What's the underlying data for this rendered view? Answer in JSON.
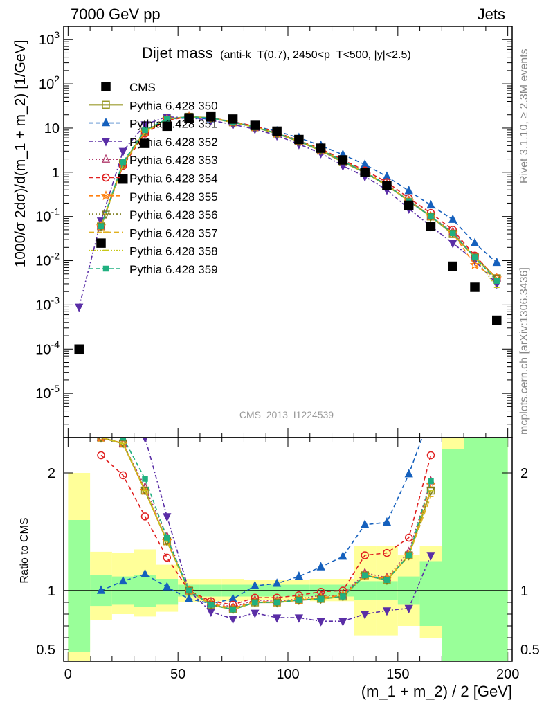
{
  "header": {
    "left": "7000 GeV pp",
    "right": "Jets"
  },
  "side": {
    "rivet": "Rivet 3.1.10, ≥ 2.3M events",
    "mcplots": "mcplots.cern.ch [arXiv:1306.3436]"
  },
  "title": {
    "main": "Dijet mass",
    "sub": "(anti-k_T(0.7), 2450<p_T<500, |y|<2.5)"
  },
  "watermark": "CMS_2013_I1224539",
  "main_ylabel": "1000/σ 2dσ)/d(m_1 + m_2) [1/GeV]",
  "ratio_ylabel": "Ratio to CMS",
  "xlabel": "(m_1 + m_2) / 2 [GeV]",
  "chart_data": {
    "type": "scatter",
    "x_range": [
      -2,
      202
    ],
    "y_range_log": [
      1e-06,
      2000
    ],
    "ratio_range": [
      0.4,
      2.3
    ],
    "x_ticks": [
      0,
      50,
      100,
      150,
      200
    ],
    "y_ticks": [
      {
        "v": 1e-05,
        "label": "10^-5"
      },
      {
        "v": 0.0001,
        "label": "10^-4"
      },
      {
        "v": 0.001,
        "label": "10^-3"
      },
      {
        "v": 0.01,
        "label": "10^-2"
      },
      {
        "v": 0.1,
        "label": "10^-1"
      },
      {
        "v": 1,
        "label": "1"
      },
      {
        "v": 10,
        "label": "10"
      },
      {
        "v": 100,
        "label": "10^2"
      },
      {
        "v": 1000,
        "label": "10^3"
      }
    ],
    "ratio_ticks": [
      {
        "v": 0.5,
        "label": "0.5"
      },
      {
        "v": 1,
        "label": "1"
      },
      {
        "v": 2,
        "label": "2"
      }
    ],
    "x": [
      5,
      15,
      25,
      35,
      45,
      55,
      65,
      75,
      85,
      95,
      105,
      115,
      125,
      135,
      145,
      155,
      165,
      175,
      185,
      195
    ],
    "data": {
      "name": "CMS",
      "values": [
        0.0001,
        0.025,
        0.7,
        4.5,
        11,
        17,
        18,
        16,
        11.5,
        8.5,
        5.5,
        3.5,
        1.9,
        1.0,
        0.5,
        0.18,
        0.06,
        0.0075,
        0.0025,
        0.00045
      ]
    },
    "ratio_bands": [
      {
        "x0": 0,
        "x1": 10,
        "inner": [
          0.48,
          1.6
        ],
        "outer": [
          0.38,
          2.0
        ]
      },
      {
        "x0": 10,
        "x1": 20,
        "inner": [
          0.87,
          1.13
        ],
        "outer": [
          0.75,
          1.33
        ]
      },
      {
        "x0": 20,
        "x1": 30,
        "inner": [
          0.88,
          1.12
        ],
        "outer": [
          0.8,
          1.32
        ]
      },
      {
        "x0": 30,
        "x1": 40,
        "inner": [
          0.86,
          1.13
        ],
        "outer": [
          0.78,
          1.35
        ]
      },
      {
        "x0": 40,
        "x1": 50,
        "inner": [
          0.88,
          1.1
        ],
        "outer": [
          0.82,
          1.22
        ]
      },
      {
        "x0": 50,
        "x1": 60,
        "inner": [
          0.95,
          1.05
        ],
        "outer": [
          0.9,
          1.1
        ]
      },
      {
        "x0": 60,
        "x1": 70,
        "inner": [
          0.95,
          1.05
        ],
        "outer": [
          0.91,
          1.1
        ]
      },
      {
        "x0": 70,
        "x1": 80,
        "inner": [
          0.95,
          1.05
        ],
        "outer": [
          0.91,
          1.1
        ]
      },
      {
        "x0": 80,
        "x1": 90,
        "inner": [
          0.95,
          1.05
        ],
        "outer": [
          0.92,
          1.09
        ]
      },
      {
        "x0": 90,
        "x1": 100,
        "inner": [
          0.95,
          1.05
        ],
        "outer": [
          0.92,
          1.09
        ]
      },
      {
        "x0": 100,
        "x1": 110,
        "inner": [
          0.95,
          1.05
        ],
        "outer": [
          0.92,
          1.09
        ]
      },
      {
        "x0": 110,
        "x1": 120,
        "inner": [
          0.95,
          1.05
        ],
        "outer": [
          0.91,
          1.1
        ]
      },
      {
        "x0": 120,
        "x1": 130,
        "inner": [
          0.95,
          1.05
        ],
        "outer": [
          0.91,
          1.1
        ]
      },
      {
        "x0": 130,
        "x1": 140,
        "inner": [
          0.92,
          1.08
        ],
        "outer": [
          0.62,
          1.38
        ]
      },
      {
        "x0": 140,
        "x1": 150,
        "inner": [
          0.92,
          1.08
        ],
        "outer": [
          0.62,
          1.38
        ]
      },
      {
        "x0": 150,
        "x1": 160,
        "inner": [
          0.88,
          1.12
        ],
        "outer": [
          0.7,
          1.3
        ]
      },
      {
        "x0": 160,
        "x1": 170,
        "inner": [
          0.7,
          1.25
        ],
        "outer": [
          0.6,
          1.38
        ]
      },
      {
        "x0": 170,
        "x1": 180,
        "inner": [
          0.35,
          2.2
        ],
        "outer": [
          0.35,
          2.8
        ]
      },
      {
        "x0": 180,
        "x1": 200,
        "inner": [
          0.35,
          2.8
        ],
        "outer": [
          0.35,
          2.8
        ]
      }
    ],
    "series": [
      {
        "name": "Pythia 6.428 350",
        "color": "#9a9a2a",
        "marker": "square-open",
        "dash": "",
        "width": 2.2,
        "values": [
          null,
          0.06,
          1.6,
          8.3,
          16,
          18,
          17,
          13.5,
          10.5,
          7.5,
          5.0,
          3.1,
          1.7,
          1.0,
          0.5,
          0.23,
          0.1,
          0.04,
          0.012,
          0.004
        ],
        "ratio": [
          null,
          2.3,
          2.25,
          1.85,
          1.42,
          1.0,
          0.88,
          0.84,
          0.9,
          0.9,
          0.92,
          0.93,
          0.95,
          1.13,
          1.09,
          1.3,
          1.85,
          null,
          null,
          null
        ]
      },
      {
        "name": "Pythia 6.428 351",
        "color": "#1560bd",
        "marker": "tri-up",
        "dash": "6,4",
        "width": 1.6,
        "values": [
          null,
          0.06,
          1.6,
          8.5,
          16,
          17,
          16,
          14,
          11,
          8.5,
          6.0,
          4.0,
          2.5,
          1.5,
          0.8,
          0.38,
          0.18,
          0.085,
          0.025,
          0.009
        ],
        "ratio": [
          null,
          1.0,
          1.08,
          1.14,
          1.03,
          0.93,
          0.89,
          0.93,
          1.04,
          1.06,
          1.12,
          1.2,
          1.29,
          1.56,
          1.58,
          1.99,
          2.5,
          null,
          null,
          null
        ]
      },
      {
        "name": "Pythia 6.428 352",
        "color": "#5a2ea6",
        "marker": "tri-down",
        "dash": "6,3,2,3",
        "width": 1.6,
        "values": [
          0.0009,
          0.08,
          3.0,
          12,
          18,
          17,
          15,
          12,
          9.5,
          6.8,
          4.3,
          2.7,
          1.4,
          0.8,
          0.4,
          0.15,
          0.06,
          0.025,
          0.01,
          0.003
        ],
        "ratio": [
          null,
          null,
          null,
          2.3,
          1.63,
          1.0,
          0.82,
          0.76,
          0.81,
          0.77,
          0.77,
          0.74,
          0.74,
          0.8,
          0.83,
          0.85,
          1.3,
          null,
          null,
          null
        ]
      },
      {
        "name": "Pythia 6.428 353",
        "color": "#b03a6b",
        "marker": "tri-up-open",
        "dash": "2,3",
        "width": 1.6,
        "values": [
          null,
          0.06,
          1.5,
          8.2,
          16,
          18,
          17,
          13.5,
          10.5,
          7.6,
          5.1,
          3.2,
          1.8,
          1.0,
          0.55,
          0.23,
          0.1,
          0.045,
          0.012,
          0.004
        ],
        "ratio": [
          null,
          2.3,
          2.25,
          1.88,
          1.46,
          1.0,
          0.9,
          0.86,
          0.92,
          0.91,
          0.93,
          0.96,
          0.96,
          1.15,
          1.11,
          1.33,
          1.93,
          null,
          null,
          null
        ]
      },
      {
        "name": "Pythia 6.428 354",
        "color": "#e02020",
        "marker": "circle-open",
        "dash": "6,4",
        "width": 1.6,
        "values": [
          null,
          0.06,
          1.4,
          7.5,
          15,
          18,
          17,
          14,
          11,
          8.0,
          5.2,
          3.4,
          1.9,
          1.1,
          0.6,
          0.26,
          0.12,
          0.05,
          0.013,
          0.004
        ],
        "ratio": [
          null,
          2.15,
          1.98,
          1.63,
          1.28,
          1.0,
          0.91,
          0.88,
          0.94,
          0.94,
          0.96,
          0.99,
          1.0,
          1.3,
          1.32,
          1.45,
          2.15,
          null,
          null,
          null
        ]
      },
      {
        "name": "Pythia 6.428 355",
        "color": "#ff7f0e",
        "marker": "star-open",
        "dash": "6,4",
        "width": 1.6,
        "values": [
          null,
          0.06,
          1.5,
          8.0,
          16,
          18,
          17,
          13.5,
          10.5,
          7.6,
          5.1,
          3.2,
          1.8,
          1.0,
          0.52,
          0.22,
          0.1,
          0.042,
          0.008,
          0.004
        ],
        "ratio": [
          null,
          2.3,
          2.25,
          1.85,
          1.42,
          1.0,
          0.89,
          0.85,
          0.91,
          0.9,
          0.92,
          0.94,
          0.96,
          1.13,
          1.1,
          1.3,
          1.9,
          null,
          null,
          null
        ]
      },
      {
        "name": "Pythia 6.428 356",
        "color": "#7a7a1a",
        "marker": "tri-down-open",
        "dash": "2,3",
        "width": 1.6,
        "values": [
          null,
          0.06,
          1.5,
          8.2,
          16,
          18,
          17,
          13.5,
          10.5,
          7.6,
          5.1,
          3.2,
          1.8,
          1.0,
          0.52,
          0.22,
          0.1,
          0.042,
          0.012,
          0.004
        ],
        "ratio": [
          null,
          2.3,
          2.25,
          1.85,
          1.42,
          1.0,
          0.88,
          0.84,
          0.9,
          0.9,
          0.92,
          0.93,
          0.95,
          1.13,
          1.09,
          1.3,
          1.85,
          null,
          null,
          null
        ]
      },
      {
        "name": "Pythia 6.428 357",
        "color": "#e0b020",
        "marker": "line",
        "dash": "8,4",
        "width": 1.6,
        "values": [
          null,
          0.06,
          1.5,
          8.2,
          16,
          18,
          17,
          13.5,
          10.5,
          7.6,
          5.1,
          3.2,
          1.8,
          1.0,
          0.52,
          0.22,
          0.1,
          0.042,
          0.012,
          0.004
        ],
        "ratio": [
          null,
          2.3,
          2.25,
          1.85,
          1.42,
          1.0,
          0.88,
          0.84,
          0.9,
          0.9,
          0.92,
          0.93,
          0.95,
          1.13,
          1.09,
          1.3,
          1.8,
          null,
          null,
          null
        ]
      },
      {
        "name": "Pythia 6.428 358",
        "color": "#c8c81a",
        "marker": "line",
        "dash": "2,2",
        "width": 1.6,
        "values": [
          null,
          0.06,
          1.5,
          8.2,
          16,
          18,
          17,
          13.5,
          10.5,
          7.6,
          5.1,
          3.2,
          1.8,
          1.0,
          0.52,
          0.22,
          0.1,
          0.042,
          0.012,
          0.0025
        ],
        "ratio": [
          null,
          2.3,
          2.25,
          1.85,
          1.42,
          1.0,
          0.88,
          0.84,
          0.9,
          0.9,
          0.92,
          0.93,
          0.95,
          1.13,
          1.09,
          1.3,
          1.85,
          null,
          null,
          null
        ]
      },
      {
        "name": "Pythia 6.428 359",
        "color": "#20b080",
        "marker": "square-small",
        "dash": "6,4",
        "width": 1.6,
        "values": [
          null,
          0.06,
          1.7,
          9.0,
          16,
          18,
          17,
          13.5,
          10.5,
          7.6,
          5.1,
          3.2,
          1.8,
          1.0,
          0.52,
          0.22,
          0.1,
          0.042,
          0.012,
          0.0035
        ],
        "ratio": [
          null,
          null,
          2.3,
          1.95,
          1.45,
          1.0,
          0.88,
          0.84,
          0.9,
          0.9,
          0.92,
          0.93,
          0.95,
          1.13,
          1.09,
          1.3,
          1.93,
          null,
          null,
          null
        ]
      }
    ]
  }
}
